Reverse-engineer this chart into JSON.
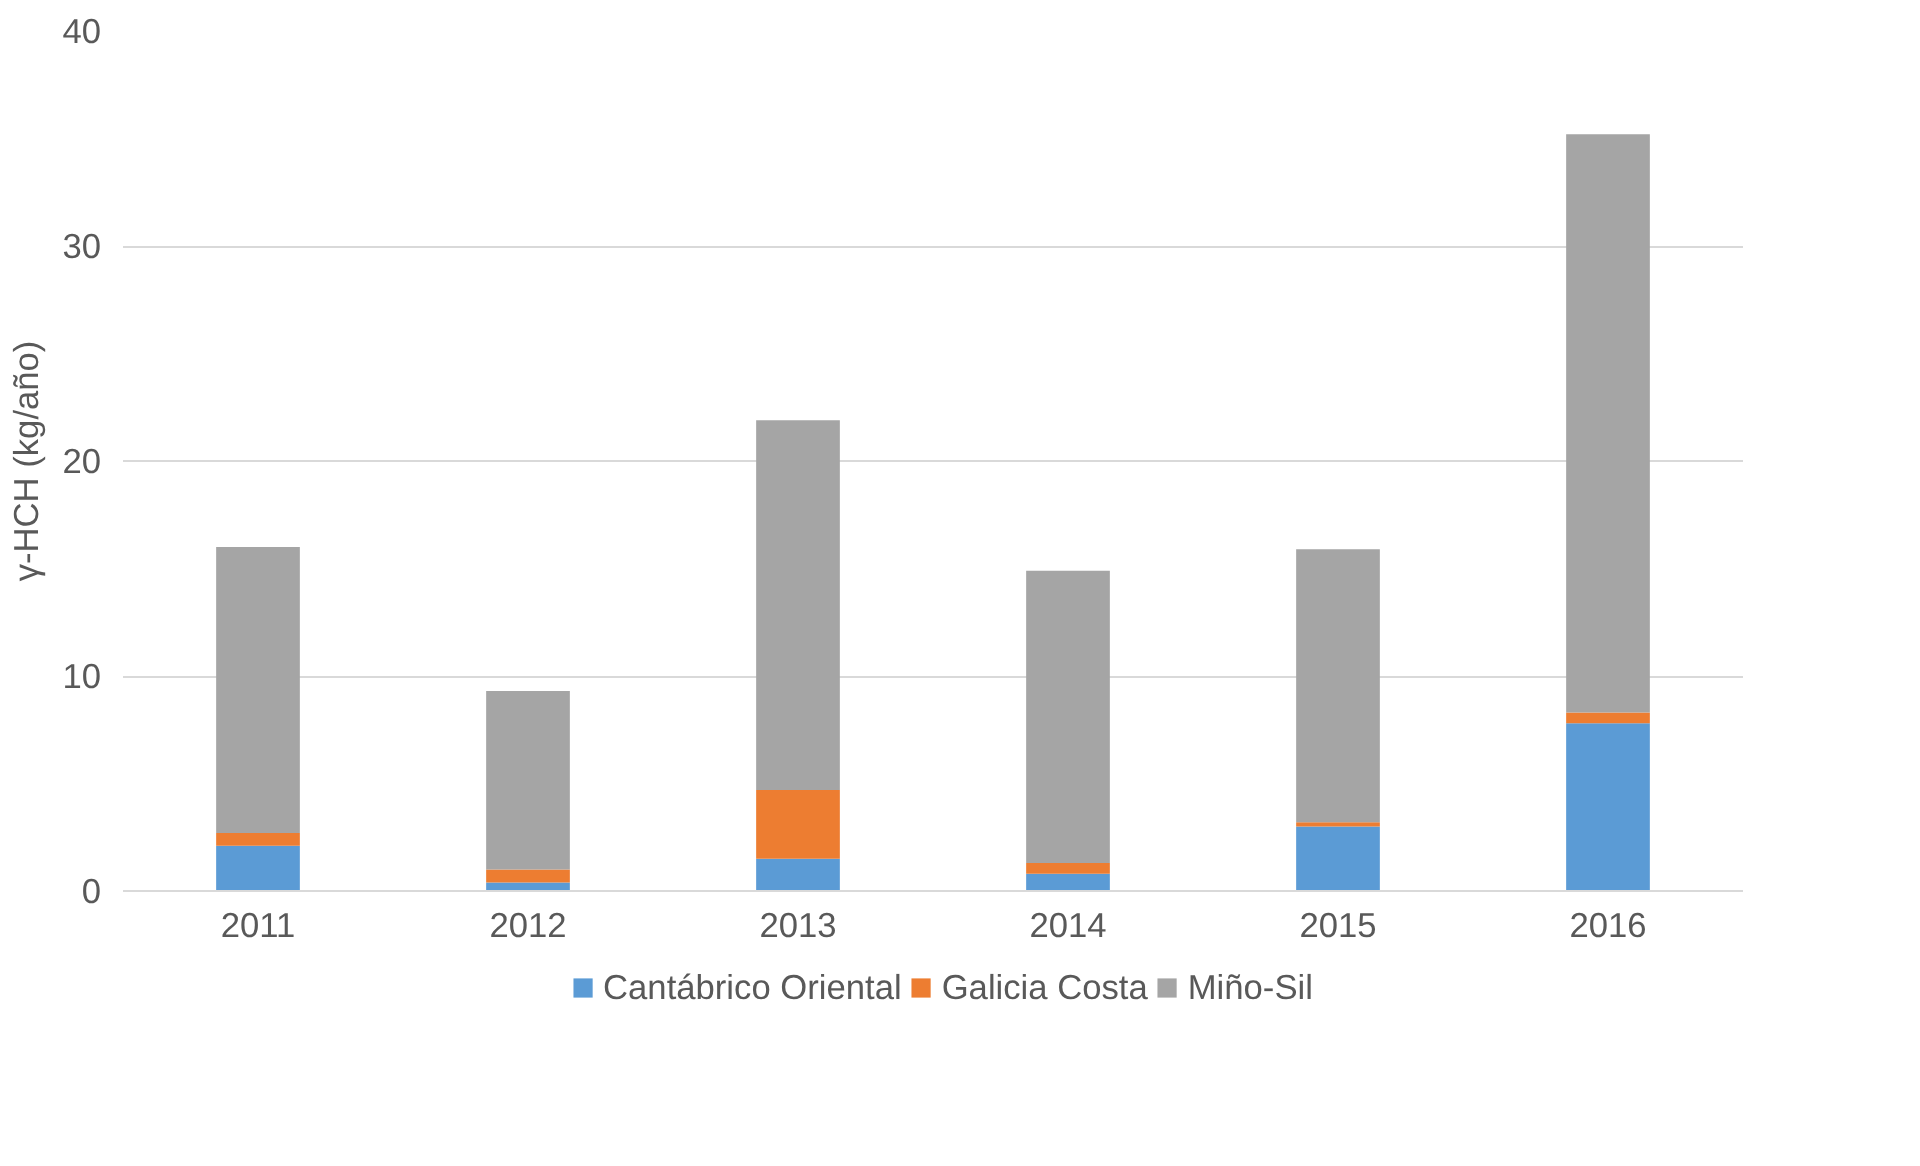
{
  "chart_data": {
    "type": "bar",
    "stacked": true,
    "ylabel": "γ-HCH (kg/año)",
    "categories": [
      "2011",
      "2012",
      "2013",
      "2014",
      "2015",
      "2016"
    ],
    "series": [
      {
        "name": "Cantábrico Oriental",
        "color": "#5b9bd5",
        "values": [
          2.1,
          0.4,
          1.5,
          0.8,
          3.0,
          7.8
        ]
      },
      {
        "name": "Galicia Costa",
        "color": "#ed7d31",
        "values": [
          0.6,
          0.6,
          3.2,
          0.5,
          0.2,
          0.5
        ]
      },
      {
        "name": "Miño-Sil",
        "color": "#a5a5a5",
        "values": [
          13.3,
          8.3,
          17.2,
          13.6,
          12.7,
          26.9
        ]
      }
    ],
    "ylim": [
      0,
      40
    ],
    "yticks": [
      0,
      10,
      20,
      30,
      40
    ],
    "grid": "y",
    "legend": "bottom"
  }
}
